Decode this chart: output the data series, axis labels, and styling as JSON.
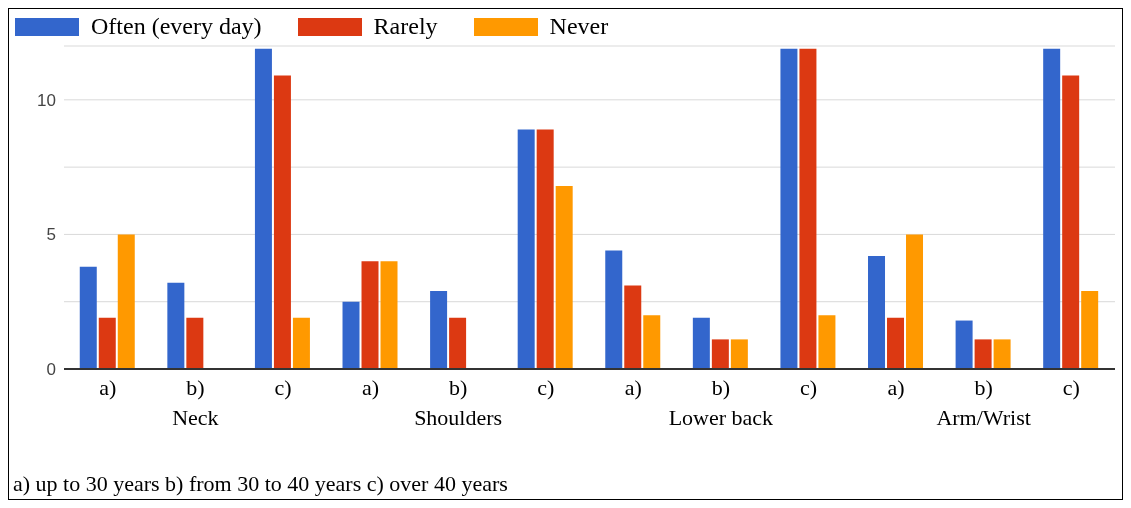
{
  "chart_data": {
    "type": "bar",
    "categories": [
      "a)",
      "b)",
      "c)",
      "a)",
      "b)",
      "c)",
      "a)",
      "b)",
      "c)",
      "a)",
      "b)",
      "c)"
    ],
    "series": [
      {
        "name": "Often (every day)",
        "color": "#3366cc",
        "values": [
          3.8,
          3.2,
          11.9,
          2.5,
          2.9,
          8.9,
          4.4,
          1.9,
          11.9,
          4.2,
          1.8,
          11.9
        ]
      },
      {
        "name": "Rarely",
        "color": "#dc3912",
        "values": [
          1.9,
          1.9,
          10.9,
          4.0,
          1.9,
          8.9,
          3.1,
          1.1,
          11.9,
          1.9,
          1.1,
          10.9
        ]
      },
      {
        "name": "Never",
        "color": "#ff9900",
        "values": [
          5.0,
          0,
          1.9,
          4.0,
          0,
          6.8,
          2.0,
          1.1,
          2.0,
          5.0,
          1.1,
          2.9
        ]
      }
    ],
    "ylim": [
      0,
      12
    ],
    "yticks": [
      0,
      {
        "value": 2.5,
        "label": null
      },
      5,
      {
        "value": 7.5,
        "label": null
      },
      10
    ],
    "grid": "y",
    "legend": "top left",
    "annotations": [
      "Neck",
      "Shoulders",
      "Lower back",
      "Arm/Wrist",
      "a) up to 30 years b) from 30 to 40 years c) over 40 years"
    ]
  }
}
